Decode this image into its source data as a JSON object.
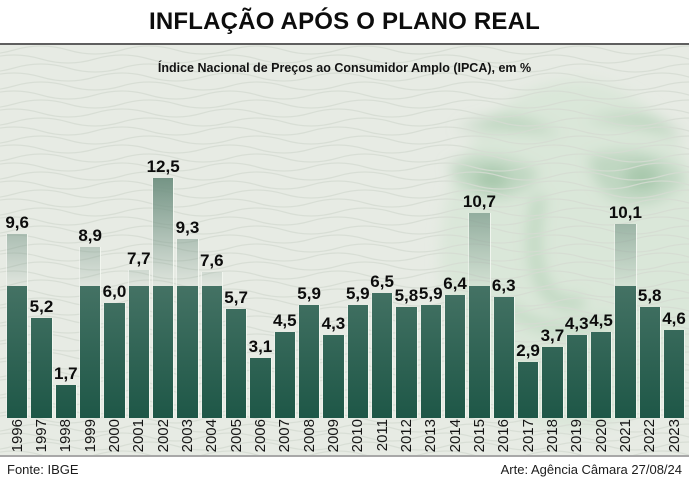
{
  "header": {
    "title": "INFLAÇÃO APÓS O PLANO REAL"
  },
  "chart": {
    "subtitle": "Índice Nacional de Preços ao Consumidor Amplo (IPCA), em %"
  },
  "footer": {
    "source": "Fonte: IBGE",
    "credit": "Arte: Agência Câmara 27/08/24"
  },
  "colors": {
    "bar_top": "#749485",
    "bar_bottom": "#1e5747",
    "chart_background": "#e7ebe4",
    "guilloche_line": "#d6dcd3",
    "watermark_green": "#b7d6ba"
  },
  "chart_data": {
    "type": "bar",
    "title": "INFLAÇÃO APÓS O PLANO REAL",
    "subtitle": "Índice Nacional de Preços ao Consumidor Amplo (IPCA), em %",
    "categories": [
      "1996",
      "1997",
      "1998",
      "1999",
      "2000",
      "2001",
      "2002",
      "2003",
      "2004",
      "2005",
      "2006",
      "2007",
      "2008",
      "2009",
      "2010",
      "2011",
      "2012",
      "2013",
      "2014",
      "2015",
      "2016",
      "2017",
      "2018",
      "2019",
      "2020",
      "2021",
      "2022",
      "2023"
    ],
    "values": [
      9.6,
      5.2,
      1.7,
      8.9,
      6.0,
      7.7,
      12.5,
      9.3,
      7.6,
      5.7,
      3.1,
      4.5,
      5.9,
      4.3,
      5.9,
      6.5,
      5.8,
      5.9,
      6.4,
      10.7,
      6.3,
      2.9,
      3.7,
      4.3,
      4.5,
      10.1,
      5.8,
      4.6
    ],
    "value_labels": [
      "9,6",
      "5,2",
      "1,7",
      "8,9",
      "6,0",
      "7,7",
      "12,5",
      "9,3",
      "7,6",
      "5,7",
      "3,1",
      "4,5",
      "5,9",
      "4,3",
      "5,9",
      "6,5",
      "5,8",
      "5,9",
      "6,4",
      "10,7",
      "6,3",
      "2,9",
      "3,7",
      "4,3",
      "4,5",
      "10,1",
      "5,8",
      "4,6"
    ],
    "ylim": [
      0,
      12.5
    ],
    "xlabel": "",
    "ylabel": "",
    "grid": false,
    "legend": "none",
    "data_labels": "above-bars",
    "source": "Fonte: IBGE",
    "credit": "Arte: Agência Câmara 27/08/24"
  }
}
